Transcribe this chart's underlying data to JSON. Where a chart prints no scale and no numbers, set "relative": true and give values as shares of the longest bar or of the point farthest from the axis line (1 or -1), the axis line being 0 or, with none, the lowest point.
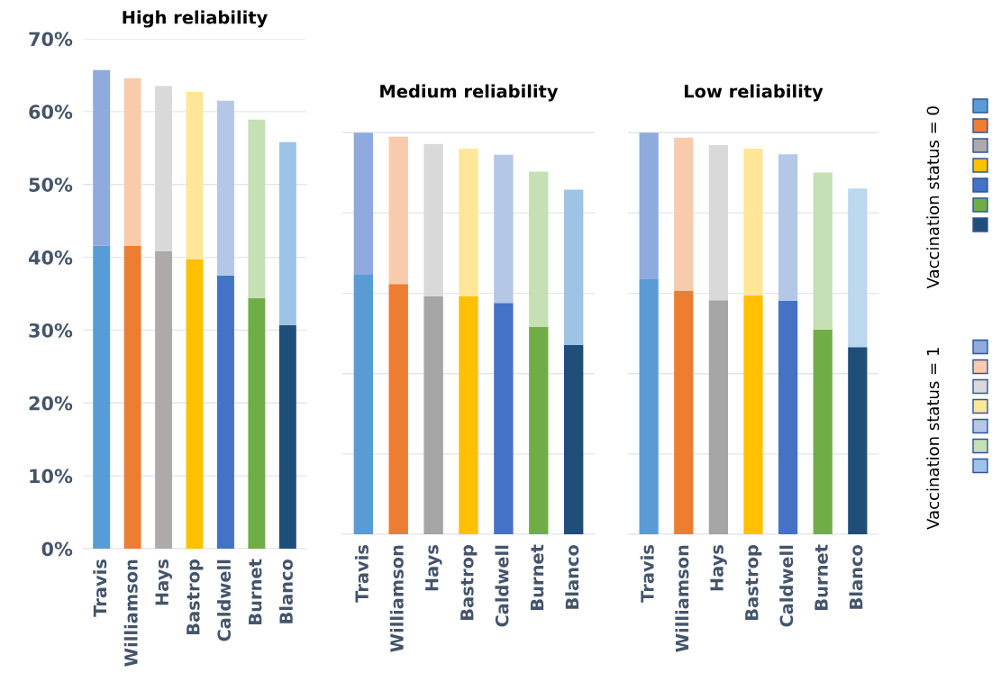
{
  "chart_data": [
    {
      "type": "bar",
      "title": "High reliability",
      "stacked": true,
      "categories": [
        "Travis",
        "Williamson",
        "Hays",
        "Bastrop",
        "Caldwell",
        "Burnet",
        "Blanco"
      ],
      "ylim": [
        0,
        70
      ],
      "yticks": [
        {
          "value": 0,
          "label": "0%"
        },
        {
          "value": 10,
          "label": "10%"
        },
        {
          "value": 20,
          "label": "20%"
        },
        {
          "value": 30,
          "label": "30%"
        },
        {
          "value": 40,
          "label": "40%"
        },
        {
          "value": 50,
          "label": "50%"
        },
        {
          "value": 60,
          "label": "60%"
        },
        {
          "value": 70,
          "label": "70%"
        }
      ],
      "grid": "y",
      "legend": "right",
      "series": [
        {
          "name": "Vaccination status = 0",
          "colors": [
            "#5b9bd5",
            "#ed7d31",
            "#aeaaaa",
            "#ffc000",
            "#4472c4",
            "#70ad47",
            "#1f4e79"
          ],
          "values": [
            41.6,
            41.6,
            40.8,
            39.7,
            37.5,
            34.4,
            30.7
          ]
        },
        {
          "name": "Vaccination status = 1",
          "colors": [
            "#8faadc",
            "#f8cbad",
            "#d9d9d9",
            "#ffe699",
            "#b4c7e7",
            "#c5e0b4",
            "#9dc3e6"
          ],
          "values": [
            24.1,
            23.0,
            22.7,
            23.0,
            24.0,
            24.5,
            25.1
          ]
        }
      ]
    },
    {
      "type": "bar",
      "title": "Medium reliability",
      "stacked": true,
      "relative": true,
      "categories": [
        "Travis",
        "Williamson",
        "Hays",
        "Bastrop",
        "Caldwell",
        "Burnet",
        "Blanco"
      ],
      "tick_labels": "x",
      "grid": "y",
      "series": [
        {
          "colors": [
            "#5b9bd5",
            "#ed7d31",
            "#a5a5a5",
            "#ffc000",
            "#4472c4",
            "#70ad47",
            "#1f4e79"
          ],
          "values": [
            0.646,
            0.623,
            0.593,
            0.593,
            0.576,
            0.516,
            0.471
          ]
        },
        {
          "colors": [
            "#8faadc",
            "#f8cbad",
            "#d9d9d9",
            "#ffe699",
            "#b4c7e7",
            "#c5e0b4",
            "#9dc3e6"
          ],
          "values": [
            0.354,
            0.367,
            0.379,
            0.367,
            0.369,
            0.387,
            0.387
          ]
        }
      ]
    },
    {
      "type": "bar",
      "title": "Low reliability",
      "stacked": true,
      "relative": true,
      "categories": [
        "Travis",
        "Williamson",
        "Hays",
        "Bastrop",
        "Caldwell",
        "Burnet",
        "Blanco"
      ],
      "tick_labels": "x",
      "grid": "y",
      "series": [
        {
          "colors": [
            "#5b9bd5",
            "#ed7d31",
            "#a5a5a5",
            "#ffc000",
            "#4472c4",
            "#70ad47",
            "#1f4e79"
          ],
          "values": [
            0.635,
            0.607,
            0.583,
            0.595,
            0.581,
            0.51,
            0.466
          ]
        },
        {
          "colors": [
            "#8faadc",
            "#f8cbad",
            "#d9d9d9",
            "#ffe699",
            "#b4c7e7",
            "#c5e0b4",
            "#bdd7ee"
          ],
          "values": [
            0.365,
            0.381,
            0.386,
            0.365,
            0.365,
            0.391,
            0.395
          ]
        }
      ]
    }
  ]
}
